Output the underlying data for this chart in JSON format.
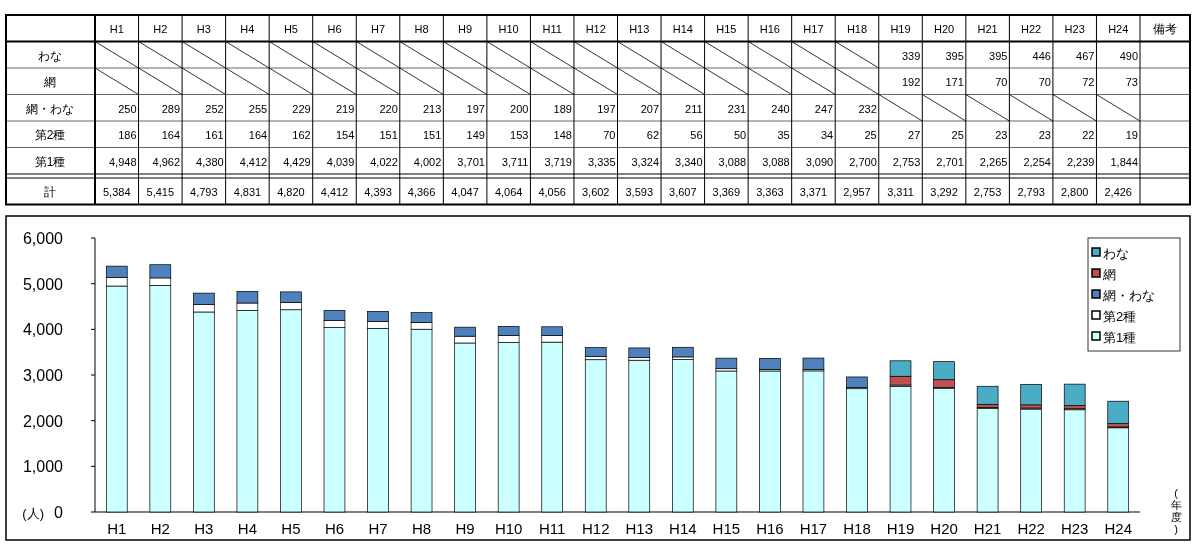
{
  "chart_data": {
    "type": "bar",
    "stacked": true,
    "ylabel": "(人)",
    "xlabel": "(年度)",
    "legend": "top right",
    "annotations": [
      "備考",
      "計",
      "5,384",
      "5,415",
      "4,793",
      "4,831",
      "4,820",
      "4,412",
      "4,393",
      "4,366",
      "4,047",
      "4,064",
      "4,056",
      "3,602",
      "3,593",
      "3,607",
      "3,369",
      "3,363",
      "3,371",
      "2,957",
      "3,311",
      "3,292",
      "2,753",
      "2,793",
      "2,800",
      "2,426"
    ],
    "categories": [
      "H1",
      "H2",
      "H3",
      "H4",
      "H5",
      "H6",
      "H7",
      "H8",
      "H9",
      "H10",
      "H11",
      "H12",
      "H13",
      "H14",
      "H15",
      "H16",
      "H17",
      "H18",
      "H19",
      "H20",
      "H21",
      "H22",
      "H23",
      "H24"
    ],
    "ylim": [
      0,
      6000
    ],
    "yticks": [
      0,
      {
        "value": 1000,
        "label": "1,000"
      },
      {
        "value": 2000,
        "label": "2,000"
      },
      {
        "value": 3000,
        "label": "3,000"
      },
      {
        "value": 4000,
        "label": "4,000"
      },
      {
        "value": 5000,
        "label": "5,000"
      },
      {
        "value": 6000,
        "label": "6,000"
      }
    ],
    "series": [
      {
        "name": "第1種",
        "color": "#ccffff",
        "values": [
          4948,
          4962,
          4380,
          4412,
          4429,
          4039,
          4022,
          4002,
          3701,
          3711,
          3719,
          3335,
          3324,
          3340,
          3088,
          3088,
          3090,
          2700,
          2753,
          2701,
          2265,
          2254,
          2239,
          1844
        ],
        "value_labels": [
          "4,948",
          "4,962",
          "4,380",
          "4,412",
          "4,429",
          "4,039",
          "4,022",
          "4,002",
          "3,701",
          "3,711",
          "3,719",
          "3,335",
          "3,324",
          "3,340",
          "3,088",
          "3,088",
          "3,090",
          "2,700",
          "2,753",
          "2,701",
          "2,265",
          "2,254",
          "2,239",
          "1,844"
        ]
      },
      {
        "name": "第2種",
        "color": "#ffffff",
        "values": [
          186,
          164,
          161,
          164,
          162,
          154,
          151,
          151,
          149,
          153,
          148,
          70,
          62,
          56,
          50,
          35,
          34,
          25,
          27,
          25,
          23,
          23,
          22,
          19
        ],
        "value_labels": [
          "186",
          "164",
          "161",
          "164",
          "162",
          "154",
          "151",
          "151",
          "149",
          "153",
          "148",
          "70",
          "62",
          "56",
          "50",
          "35",
          "34",
          "25",
          "27",
          "25",
          "23",
          "23",
          "22",
          "19"
        ]
      },
      {
        "name": "網・わな",
        "color": "#4f81bd",
        "values": [
          250,
          289,
          252,
          255,
          229,
          219,
          220,
          213,
          197,
          200,
          189,
          197,
          207,
          211,
          231,
          240,
          247,
          232,
          null,
          null,
          null,
          null,
          null,
          null
        ],
        "value_labels": [
          "250",
          "289",
          "252",
          "255",
          "229",
          "219",
          "220",
          "213",
          "197",
          "200",
          "189",
          "197",
          "207",
          "211",
          "231",
          "240",
          "247",
          "232",
          null,
          null,
          null,
          null,
          null,
          null
        ]
      },
      {
        "name": "網",
        "color": "#c0504d",
        "values": [
          null,
          null,
          null,
          null,
          null,
          null,
          null,
          null,
          null,
          null,
          null,
          null,
          null,
          null,
          null,
          null,
          null,
          null,
          192,
          171,
          70,
          70,
          72,
          73
        ],
        "value_labels": [
          null,
          null,
          null,
          null,
          null,
          null,
          null,
          null,
          null,
          null,
          null,
          null,
          null,
          null,
          null,
          null,
          null,
          null,
          "192",
          "171",
          "70",
          "70",
          "72",
          "73"
        ]
      },
      {
        "name": "わな",
        "color": "#4bacc6",
        "values": [
          null,
          null,
          null,
          null,
          null,
          null,
          null,
          null,
          null,
          null,
          null,
          null,
          null,
          null,
          null,
          null,
          null,
          null,
          339,
          395,
          395,
          446,
          467,
          490
        ],
        "value_labels": [
          null,
          null,
          null,
          null,
          null,
          null,
          null,
          null,
          null,
          null,
          null,
          null,
          null,
          null,
          null,
          null,
          null,
          null,
          "339",
          "395",
          "395",
          "446",
          "467",
          "490"
        ]
      }
    ],
    "grid": false
  }
}
